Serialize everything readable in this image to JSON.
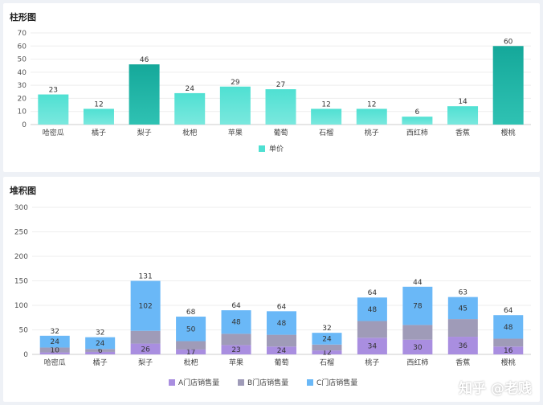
{
  "chart_data": [
    {
      "type": "bar",
      "title": "柱形图",
      "categories": [
        "哈密瓜",
        "橘子",
        "梨子",
        "枇杷",
        "苹果",
        "葡萄",
        "石榴",
        "桃子",
        "西红柿",
        "香蕉",
        "樱桃"
      ],
      "series": [
        {
          "name": "单价",
          "values": [
            23,
            12,
            46,
            24,
            29,
            27,
            12,
            12,
            6,
            14,
            60
          ]
        }
      ],
      "ylim": [
        0,
        70
      ],
      "yticks": [
        0,
        10,
        20,
        30,
        40,
        50,
        60,
        70
      ],
      "grid": true,
      "legend": "bottom",
      "colors": {
        "normal_top": "#4fe0d2",
        "normal_bottom": "#7ae8de",
        "high_top": "#15a89a",
        "high_bottom": "#2fc2b3"
      }
    },
    {
      "type": "bar",
      "stacked": true,
      "title": "堆积图",
      "categories": [
        "哈密瓜",
        "橘子",
        "梨子",
        "枇杷",
        "苹果",
        "葡萄",
        "石榴",
        "桃子",
        "西红柿",
        "香蕉",
        "樱桃"
      ],
      "series": [
        {
          "name": "A门店销售量",
          "values": [
            4,
            5,
            22,
            10,
            19,
            16,
            8,
            34,
            30,
            36,
            16
          ],
          "color": "#a98ee0"
        },
        {
          "name": "B门店销售量",
          "values": [
            10,
            6,
            26,
            17,
            23,
            24,
            12,
            34,
            30,
            36,
            16
          ],
          "color": "#9f9bb8"
        },
        {
          "name": "C门店销售量",
          "values": [
            24,
            24,
            102,
            50,
            48,
            48,
            24,
            48,
            78,
            45,
            48
          ],
          "color": "#6ab8f7"
        }
      ],
      "inner_labels": [
        [
          null,
          "10",
          "24"
        ],
        [
          null,
          "6",
          "24"
        ],
        [
          "26",
          null,
          "102"
        ],
        [
          "17",
          null,
          "50"
        ],
        [
          "23",
          null,
          "48"
        ],
        [
          "24",
          null,
          "48"
        ],
        [
          "12",
          null,
          "24"
        ],
        [
          "34",
          null,
          "48"
        ],
        [
          "30",
          null,
          "78"
        ],
        [
          "36",
          null,
          "45"
        ],
        [
          "16",
          null,
          "48"
        ]
      ],
      "top_labels": [
        "32",
        "32",
        "131",
        "68",
        "64",
        "64",
        "32",
        "64",
        "44",
        "63",
        "64"
      ],
      "ylim": [
        0,
        300
      ],
      "yticks": [
        0,
        50,
        100,
        150,
        200,
        250,
        300
      ],
      "grid": true,
      "legend": "bottom"
    }
  ],
  "watermark": "知乎 @老贱"
}
